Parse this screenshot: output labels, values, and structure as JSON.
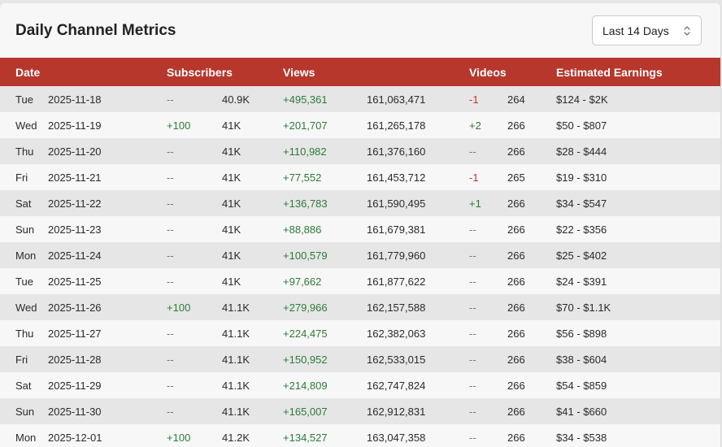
{
  "title": "Daily Channel Metrics",
  "range_select": {
    "value": "Last 14 Days"
  },
  "columns": {
    "date": "Date",
    "subscribers": "Subscribers",
    "views": "Views",
    "videos": "Videos",
    "earnings": "Estimated Earnings"
  },
  "colors": {
    "header_bg": "#b7372d",
    "positive": "#2d7a3a",
    "negative": "#c53030"
  },
  "rows": [
    {
      "day": "Tue",
      "date": "2025-11-18",
      "sub_change": "--",
      "subs": "40.9K",
      "views_change": "+495,361",
      "views": "161,063,471",
      "video_change": "-1",
      "videos": "264",
      "earnings": "$124 - $2K"
    },
    {
      "day": "Wed",
      "date": "2025-11-19",
      "sub_change": "+100",
      "subs": "41K",
      "views_change": "+201,707",
      "views": "161,265,178",
      "video_change": "+2",
      "videos": "266",
      "earnings": "$50 - $807"
    },
    {
      "day": "Thu",
      "date": "2025-11-20",
      "sub_change": "--",
      "subs": "41K",
      "views_change": "+110,982",
      "views": "161,376,160",
      "video_change": "--",
      "videos": "266",
      "earnings": "$28 - $444"
    },
    {
      "day": "Fri",
      "date": "2025-11-21",
      "sub_change": "--",
      "subs": "41K",
      "views_change": "+77,552",
      "views": "161,453,712",
      "video_change": "-1",
      "videos": "265",
      "earnings": "$19 - $310"
    },
    {
      "day": "Sat",
      "date": "2025-11-22",
      "sub_change": "--",
      "subs": "41K",
      "views_change": "+136,783",
      "views": "161,590,495",
      "video_change": "+1",
      "videos": "266",
      "earnings": "$34 - $547"
    },
    {
      "day": "Sun",
      "date": "2025-11-23",
      "sub_change": "--",
      "subs": "41K",
      "views_change": "+88,886",
      "views": "161,679,381",
      "video_change": "--",
      "videos": "266",
      "earnings": "$22 - $356"
    },
    {
      "day": "Mon",
      "date": "2025-11-24",
      "sub_change": "--",
      "subs": "41K",
      "views_change": "+100,579",
      "views": "161,779,960",
      "video_change": "--",
      "videos": "266",
      "earnings": "$25 - $402"
    },
    {
      "day": "Tue",
      "date": "2025-11-25",
      "sub_change": "--",
      "subs": "41K",
      "views_change": "+97,662",
      "views": "161,877,622",
      "video_change": "--",
      "videos": "266",
      "earnings": "$24 - $391"
    },
    {
      "day": "Wed",
      "date": "2025-11-26",
      "sub_change": "+100",
      "subs": "41.1K",
      "views_change": "+279,966",
      "views": "162,157,588",
      "video_change": "--",
      "videos": "266",
      "earnings": "$70 - $1.1K"
    },
    {
      "day": "Thu",
      "date": "2025-11-27",
      "sub_change": "--",
      "subs": "41.1K",
      "views_change": "+224,475",
      "views": "162,382,063",
      "video_change": "--",
      "videos": "266",
      "earnings": "$56 - $898"
    },
    {
      "day": "Fri",
      "date": "2025-11-28",
      "sub_change": "--",
      "subs": "41.1K",
      "views_change": "+150,952",
      "views": "162,533,015",
      "video_change": "--",
      "videos": "266",
      "earnings": "$38 - $604"
    },
    {
      "day": "Sat",
      "date": "2025-11-29",
      "sub_change": "--",
      "subs": "41.1K",
      "views_change": "+214,809",
      "views": "162,747,824",
      "video_change": "--",
      "videos": "266",
      "earnings": "$54 - $859"
    },
    {
      "day": "Sun",
      "date": "2025-11-30",
      "sub_change": "--",
      "subs": "41.1K",
      "views_change": "+165,007",
      "views": "162,912,831",
      "video_change": "--",
      "videos": "266",
      "earnings": "$41 - $660"
    },
    {
      "day": "Mon",
      "date": "2025-12-01",
      "sub_change": "+100",
      "subs": "41.2K",
      "views_change": "+134,527",
      "views": "163,047,358",
      "video_change": "--",
      "videos": "266",
      "earnings": "$34 - $538"
    }
  ]
}
